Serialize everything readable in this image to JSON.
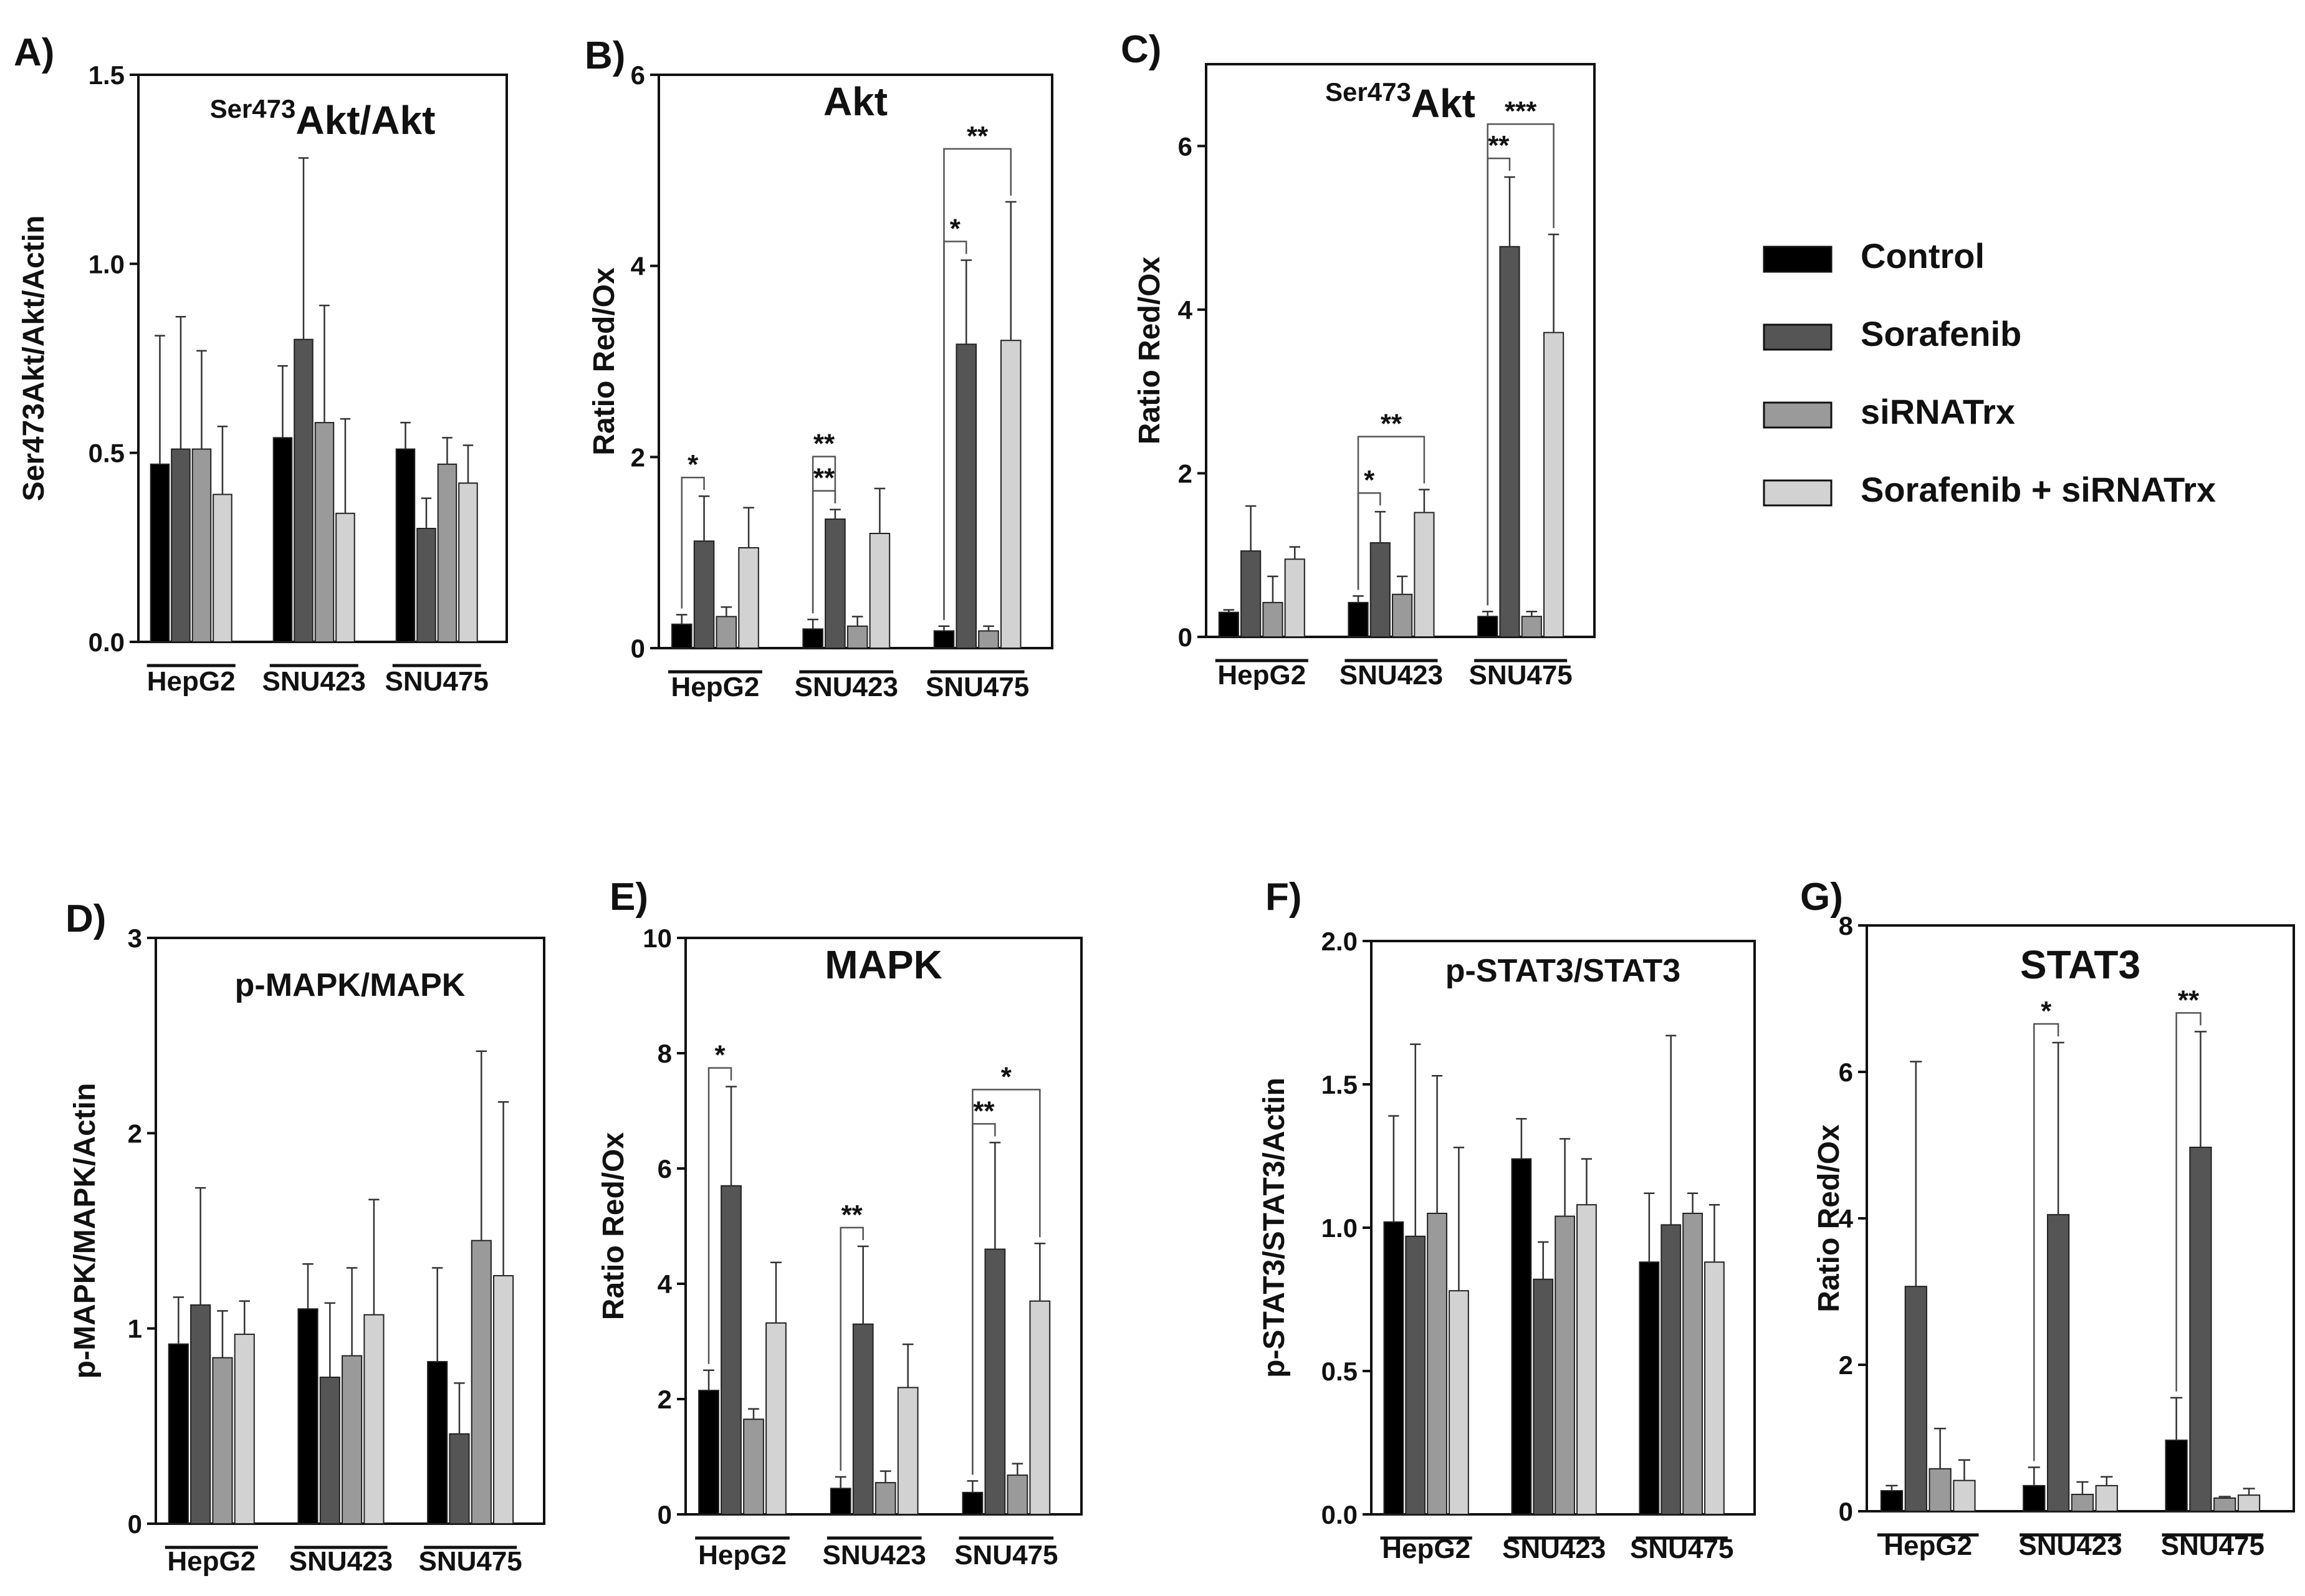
{
  "legend": {
    "items": [
      {
        "label": "Control",
        "color": "#000000"
      },
      {
        "label": "Sorafenib",
        "color": "#555555"
      },
      {
        "label": "siRNATrx",
        "color": "#9a9a9a"
      },
      {
        "label": "Sorafenib + siRNATrx",
        "color": "#d2d2d2"
      }
    ]
  },
  "chart_data": [
    {
      "type": "bar",
      "panel": "A)",
      "title_sup": "Ser473",
      "title_main": "Akt/Akt",
      "ylabel": "Ser473Akt/Akt/Actin",
      "ylim": [
        0,
        1.5
      ],
      "yticks": [
        "0.0",
        "0.5",
        "1.0",
        "1.5"
      ],
      "categories": [
        "HepG2",
        "SNU423",
        "SNU475"
      ],
      "series": [
        {
          "name": "Control",
          "values": [
            0.47,
            0.54,
            0.51
          ],
          "errors": [
            0.34,
            0.19,
            0.07
          ]
        },
        {
          "name": "Sorafenib",
          "values": [
            0.51,
            0.8,
            0.3
          ],
          "errors": [
            0.35,
            0.48,
            0.08
          ]
        },
        {
          "name": "siRNATrx",
          "values": [
            0.51,
            0.58,
            0.47
          ],
          "errors": [
            0.26,
            0.31,
            0.07
          ]
        },
        {
          "name": "Sorafenib + siRNATrx",
          "values": [
            0.39,
            0.34,
            0.42
          ],
          "errors": [
            0.18,
            0.25,
            0.1
          ]
        }
      ],
      "significance": []
    },
    {
      "type": "bar",
      "panel": "B)",
      "title": "Akt",
      "ylabel": "Ratio Red/Ox",
      "ylim": [
        0,
        6
      ],
      "yticks": [
        "0",
        "2",
        "4",
        "6"
      ],
      "categories": [
        "HepG2",
        "SNU423",
        "SNU475"
      ],
      "series": [
        {
          "name": "Control",
          "values": [
            0.25,
            0.2,
            0.18
          ],
          "errors": [
            0.1,
            0.1,
            0.05
          ]
        },
        {
          "name": "Sorafenib",
          "values": [
            1.12,
            1.35,
            3.18
          ],
          "errors": [
            0.47,
            0.1,
            0.88
          ]
        },
        {
          "name": "siRNATrx",
          "values": [
            0.33,
            0.23,
            0.18
          ],
          "errors": [
            0.1,
            0.1,
            0.05
          ]
        },
        {
          "name": "Sorafenib + siRNATrx",
          "values": [
            1.05,
            1.2,
            3.22
          ],
          "errors": [
            0.42,
            0.47,
            1.45
          ]
        }
      ],
      "significance": [
        {
          "group": 0,
          "from": 0,
          "to": 1,
          "level": 1,
          "label": "*"
        },
        {
          "group": 1,
          "from": 0,
          "to": 1,
          "level": 1,
          "label": "**"
        },
        {
          "group": 1,
          "from": 0,
          "to": 1,
          "level": 2,
          "label": "**"
        },
        {
          "group": 2,
          "from": 0,
          "to": 1,
          "level": 1,
          "label": "*"
        },
        {
          "group": 2,
          "from": 0,
          "to": 3,
          "level": 2,
          "label": "**"
        }
      ]
    },
    {
      "type": "bar",
      "panel": "C)",
      "title_sup": "Ser473",
      "title_main": "Akt",
      "ylabel": "Ratio Red/Ox",
      "ylim": [
        0,
        7
      ],
      "yticks": [
        "0",
        "2",
        "4",
        "6"
      ],
      "categories": [
        "HepG2",
        "SNU423",
        "SNU475"
      ],
      "series": [
        {
          "name": "Control",
          "values": [
            0.3,
            0.42,
            0.25
          ],
          "errors": [
            0.03,
            0.08,
            0.06
          ]
        },
        {
          "name": "Sorafenib",
          "values": [
            1.05,
            1.15,
            4.77
          ],
          "errors": [
            0.55,
            0.38,
            0.85
          ]
        },
        {
          "name": "siRNATrx",
          "values": [
            0.42,
            0.52,
            0.25
          ],
          "errors": [
            0.32,
            0.22,
            0.06
          ]
        },
        {
          "name": "Sorafenib + siRNATrx",
          "values": [
            0.95,
            1.52,
            3.72
          ],
          "errors": [
            0.15,
            0.28,
            1.2
          ]
        }
      ],
      "significance": [
        {
          "group": 1,
          "from": 0,
          "to": 1,
          "level": 1,
          "label": "*"
        },
        {
          "group": 1,
          "from": 0,
          "to": 3,
          "level": 2,
          "label": "**"
        },
        {
          "group": 2,
          "from": 0,
          "to": 1,
          "level": 1,
          "label": "**"
        },
        {
          "group": 2,
          "from": 0,
          "to": 3,
          "level": 2,
          "label": "***"
        }
      ]
    },
    {
      "type": "bar",
      "panel": "D)",
      "title": "p-MAPK/MAPK",
      "ylabel": "p-MAPK/MAPK/Actin",
      "ylim": [
        0,
        3
      ],
      "yticks": [
        "0",
        "1",
        "2",
        "3"
      ],
      "categories": [
        "HepG2",
        "SNU423",
        "SNU475"
      ],
      "series": [
        {
          "name": "Control",
          "values": [
            0.92,
            1.1,
            0.83
          ],
          "errors": [
            0.24,
            0.23,
            0.48
          ]
        },
        {
          "name": "Sorafenib",
          "values": [
            1.12,
            0.75,
            0.46
          ],
          "errors": [
            0.6,
            0.38,
            0.26
          ]
        },
        {
          "name": "siRNATrx",
          "values": [
            0.85,
            0.86,
            1.45
          ],
          "errors": [
            0.24,
            0.45,
            0.97
          ]
        },
        {
          "name": "Sorafenib + siRNATrx",
          "values": [
            0.97,
            1.07,
            1.27
          ],
          "errors": [
            0.17,
            0.59,
            0.89
          ]
        }
      ],
      "significance": []
    },
    {
      "type": "bar",
      "panel": "E)",
      "title": "MAPK",
      "ylabel": "Ratio Red/Ox",
      "ylim": [
        0,
        10
      ],
      "yticks": [
        "0",
        "2",
        "4",
        "6",
        "8",
        "10"
      ],
      "categories": [
        "HepG2",
        "SNU423",
        "SNU475"
      ],
      "series": [
        {
          "name": "Control",
          "values": [
            2.15,
            0.45,
            0.38
          ],
          "errors": [
            0.35,
            0.2,
            0.2
          ]
        },
        {
          "name": "Sorafenib",
          "values": [
            5.7,
            3.3,
            4.6
          ],
          "errors": [
            1.72,
            1.35,
            1.85
          ]
        },
        {
          "name": "siRNATrx",
          "values": [
            1.65,
            0.55,
            0.68
          ],
          "errors": [
            0.18,
            0.2,
            0.2
          ]
        },
        {
          "name": "Sorafenib + siRNATrx",
          "values": [
            3.32,
            2.2,
            3.7
          ],
          "errors": [
            1.05,
            0.75,
            1.0
          ]
        }
      ],
      "significance": [
        {
          "group": 0,
          "from": 0,
          "to": 1,
          "level": 1,
          "label": "*"
        },
        {
          "group": 1,
          "from": 0,
          "to": 1,
          "level": 1,
          "label": "**"
        },
        {
          "group": 2,
          "from": 0,
          "to": 1,
          "level": 1,
          "label": "**"
        },
        {
          "group": 2,
          "from": 0,
          "to": 3,
          "level": 2,
          "label": "*"
        }
      ]
    },
    {
      "type": "bar",
      "panel": "F)",
      "title": "p-STAT3/STAT3",
      "ylabel": "p-STAT3/STAT3/Actin",
      "ylim": [
        0,
        2.0
      ],
      "yticks": [
        "0.0",
        "0.5",
        "1.0",
        "1.5",
        "2.0"
      ],
      "categories": [
        "HepG2",
        "SNU423",
        "SNU475"
      ],
      "series": [
        {
          "name": "Control",
          "values": [
            1.02,
            1.24,
            0.88
          ],
          "errors": [
            0.37,
            0.14,
            0.24
          ]
        },
        {
          "name": "Sorafenib",
          "values": [
            0.97,
            0.82,
            1.01
          ],
          "errors": [
            0.67,
            0.13,
            0.66
          ]
        },
        {
          "name": "siRNATrx",
          "values": [
            1.05,
            1.04,
            1.05
          ],
          "errors": [
            0.48,
            0.27,
            0.07
          ]
        },
        {
          "name": "Sorafenib + siRNATrx",
          "values": [
            0.78,
            1.08,
            0.88
          ],
          "errors": [
            0.5,
            0.16,
            0.2
          ]
        }
      ],
      "significance": []
    },
    {
      "type": "bar",
      "panel": "G)",
      "title": "STAT3",
      "ylabel": "Ratio Red/Ox",
      "ylim": [
        0,
        8
      ],
      "yticks": [
        "0",
        "2",
        "4",
        "6",
        "8"
      ],
      "categories": [
        "HepG2",
        "SNU423",
        "SNU475"
      ],
      "series": [
        {
          "name": "Control",
          "values": [
            0.28,
            0.35,
            0.97
          ],
          "errors": [
            0.07,
            0.25,
            0.58
          ]
        },
        {
          "name": "Sorafenib",
          "values": [
            3.07,
            4.05,
            4.97
          ],
          "errors": [
            3.07,
            2.35,
            1.58
          ]
        },
        {
          "name": "siRNATrx",
          "values": [
            0.58,
            0.23,
            0.18
          ],
          "errors": [
            0.55,
            0.17,
            0.02
          ]
        },
        {
          "name": "Sorafenib + siRNATrx",
          "values": [
            0.42,
            0.35,
            0.22
          ],
          "errors": [
            0.28,
            0.12,
            0.09
          ]
        }
      ],
      "significance": [
        {
          "group": 1,
          "from": 0,
          "to": 1,
          "level": 1,
          "label": "*"
        },
        {
          "group": 2,
          "from": 0,
          "to": 1,
          "level": 1,
          "label": "**"
        }
      ]
    }
  ]
}
